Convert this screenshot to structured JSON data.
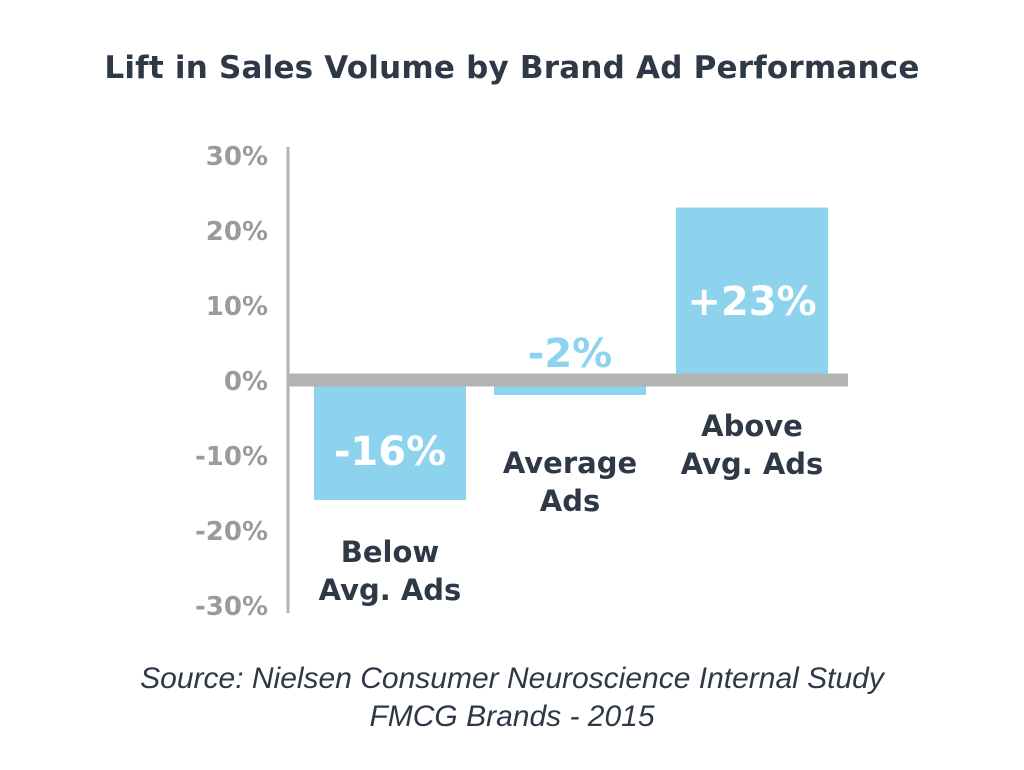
{
  "chart_data": {
    "type": "bar",
    "title": "Lift in Sales Volume by Brand Ad Performance",
    "categories": [
      "Below Avg. Ads",
      "Average Ads",
      "Above Avg. Ads"
    ],
    "category_lines": [
      [
        "Below",
        "Avg. Ads"
      ],
      [
        "Average",
        "Ads"
      ],
      [
        "Above",
        "Avg. Ads"
      ]
    ],
    "values": [
      -16,
      -2,
      23
    ],
    "value_labels": [
      "-16%",
      "-2%",
      "+23%"
    ],
    "ylim": [
      -30,
      30
    ],
    "yticks": [
      30,
      20,
      10,
      0,
      -10,
      -20,
      -30
    ],
    "ytick_labels": [
      "30%",
      "20%",
      "10%",
      "0%",
      "-10%",
      "-20%",
      "-30%"
    ],
    "xlabel": "",
    "ylabel": "",
    "grid": false,
    "colors": {
      "bar": "#8dd3ee",
      "axis": "#b3b3b3",
      "tick_text": "#9b9b9b",
      "dark_text": "#2f3847",
      "label_on_bar": "#ffffff",
      "label_light": "#8dd3ee"
    }
  },
  "source": {
    "line1": "Source: Nielsen Consumer Neuroscience Internal Study",
    "line2": "FMCG Brands - 2015"
  }
}
